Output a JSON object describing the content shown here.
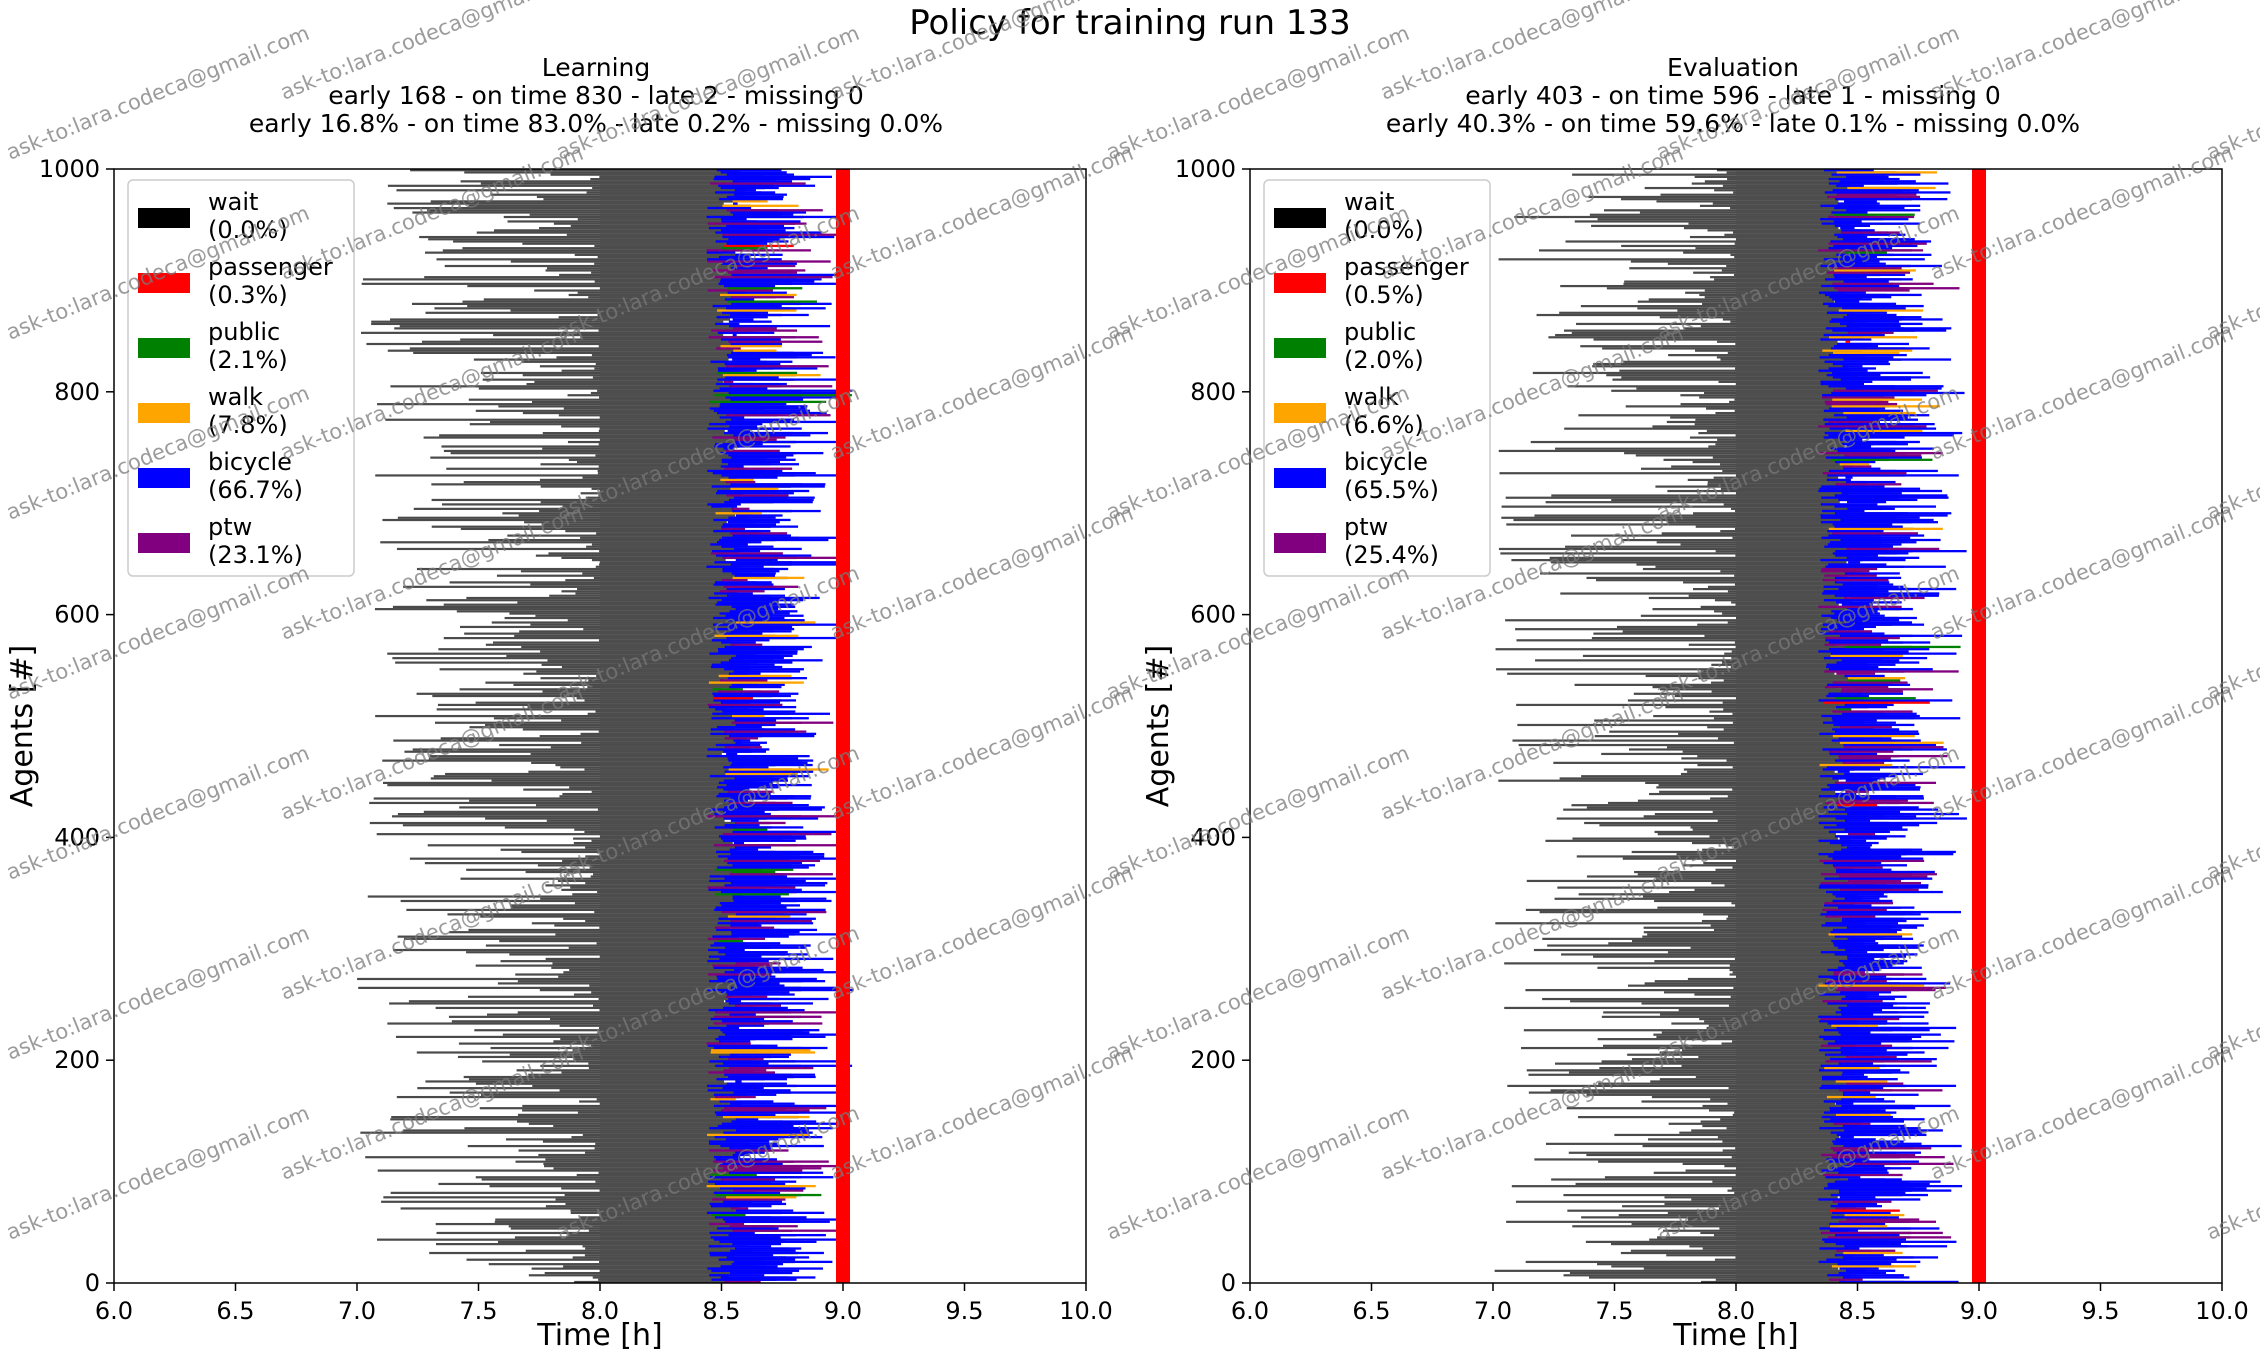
{
  "figure": {
    "suptitle": "Policy for training run 133",
    "watermark_text": "ask-to:lara.codeca@gmail.com"
  },
  "chart_data": [
    {
      "type": "bar",
      "orientation": "horizontal-gantt",
      "title_lines": [
        "Learning",
        "early 168 - on time 830 - late 2 - missing 0",
        "early 16.8% - on time 83.0% - late 0.2% - missing 0.0%"
      ],
      "xlabel": "Time [h]",
      "ylabel": "Agents [#]",
      "xlim": [
        6.0,
        10.0
      ],
      "ylim": [
        0,
        1000
      ],
      "xticks": [
        "6.0",
        "6.5",
        "7.0",
        "7.5",
        "8.0",
        "8.5",
        "9.0",
        "9.5",
        "10.0"
      ],
      "yticks": [
        "0",
        "200",
        "400",
        "600",
        "800",
        "1000"
      ],
      "target_arrival_h": 9.0,
      "agents": 1000,
      "legend": {
        "placement": "upper-left",
        "entries": [
          {
            "name": "wait",
            "share": "(0.0%)",
            "color": "#000000"
          },
          {
            "name": "passenger",
            "share": "(0.3%)",
            "color": "#ff0000"
          },
          {
            "name": "public",
            "share": "(2.1%)",
            "color": "#008000"
          },
          {
            "name": "walk",
            "share": "(7.8%)",
            "color": "#ffa500"
          },
          {
            "name": "bicycle",
            "share": "(66.7%)",
            "color": "#0000ff"
          },
          {
            "name": "ptw",
            "share": "(23.1%)",
            "color": "#800080"
          }
        ]
      },
      "stats": {
        "early": 168,
        "on_time": 830,
        "late": 2,
        "missing": 0
      },
      "series_approx": {
        "departure_h_range": [
          7.0,
          8.0
        ],
        "main_segment_end_h_range": [
          8.5,
          8.95
        ]
      }
    },
    {
      "type": "bar",
      "orientation": "horizontal-gantt",
      "title_lines": [
        "Evaluation",
        "early 403 - on time 596 - late 1 - missing 0",
        "early 40.3% - on time 59.6% - late 0.1% - missing 0.0%"
      ],
      "xlabel": "Time [h]",
      "ylabel": "Agents [#]",
      "xlim": [
        6.0,
        10.0
      ],
      "ylim": [
        0,
        1000
      ],
      "xticks": [
        "6.0",
        "6.5",
        "7.0",
        "7.5",
        "8.0",
        "8.5",
        "9.0",
        "9.5",
        "10.0"
      ],
      "yticks": [
        "0",
        "200",
        "400",
        "600",
        "800",
        "1000"
      ],
      "target_arrival_h": 9.0,
      "agents": 1000,
      "legend": {
        "placement": "upper-left",
        "entries": [
          {
            "name": "wait",
            "share": "(0.0%)",
            "color": "#000000"
          },
          {
            "name": "passenger",
            "share": "(0.5%)",
            "color": "#ff0000"
          },
          {
            "name": "public",
            "share": "(2.0%)",
            "color": "#008000"
          },
          {
            "name": "walk",
            "share": "(6.6%)",
            "color": "#ffa500"
          },
          {
            "name": "bicycle",
            "share": "(65.5%)",
            "color": "#0000ff"
          },
          {
            "name": "ptw",
            "share": "(25.4%)",
            "color": "#800080"
          }
        ]
      },
      "stats": {
        "early": 403,
        "on_time": 596,
        "late": 1,
        "missing": 0
      },
      "series_approx": {
        "departure_h_range": [
          7.0,
          8.0
        ],
        "main_segment_end_h_range": [
          8.4,
          8.85
        ]
      }
    }
  ]
}
